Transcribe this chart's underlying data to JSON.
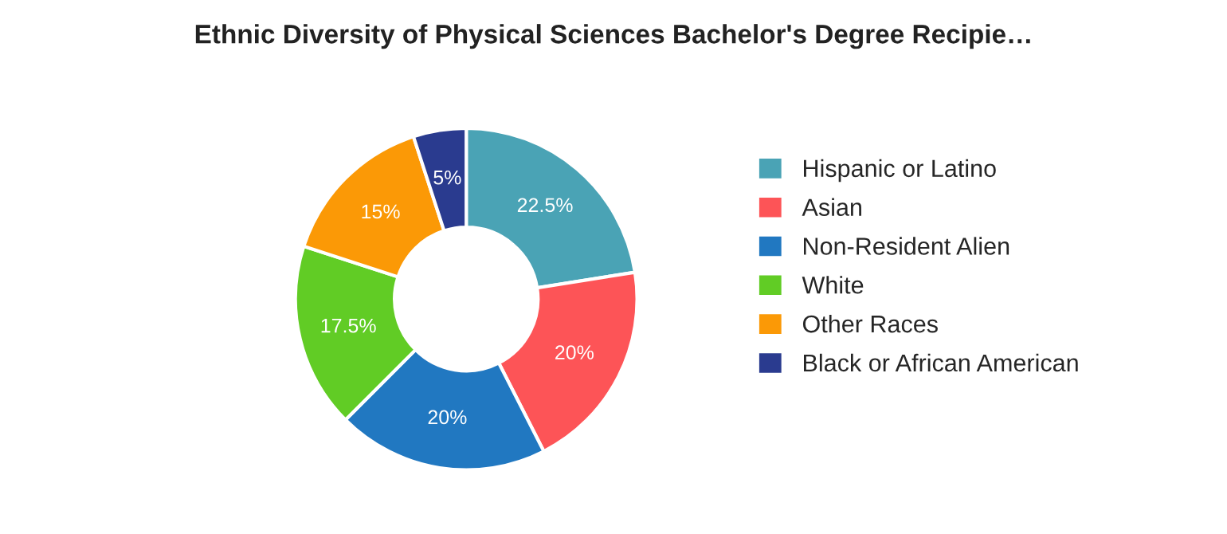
{
  "chart_data": {
    "type": "donut",
    "title": "Ethnic Diversity of Physical Sciences Bachelor's Degree Recipie…",
    "categories": [
      "Hispanic or Latino",
      "Asian",
      "Non-Resident Alien",
      "White",
      "Other Races",
      "Black or African American"
    ],
    "values": [
      22.5,
      20,
      20,
      17.5,
      15,
      5
    ],
    "colors": [
      "#4aa3b5",
      "#fd5457",
      "#2178c1",
      "#61cc25",
      "#fb9906",
      "#2a3b8f"
    ],
    "value_labels": [
      "22.5%",
      "20%",
      "20%",
      "17.5%",
      "15%",
      "5%"
    ],
    "legend": "right"
  }
}
